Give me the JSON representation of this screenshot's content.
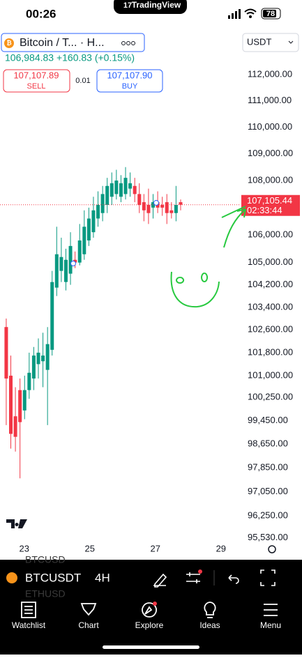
{
  "status_bar": {
    "time": "00:26",
    "app_pill": "TradingView",
    "battery": 78
  },
  "header": {
    "symbol": "Bitcoin / T...  · H...",
    "currency": "USDT",
    "quote": "106,984.83 +160.83 (+0.15%)",
    "sell_price": "107,107.89",
    "sell_label": "SELL",
    "spread": "0.01",
    "buy_price": "107,107.90",
    "buy_label": "BUY"
  },
  "chart_data": {
    "type": "candlestick",
    "log_scale": true,
    "grid": false,
    "x": [
      22.45,
      22.59,
      22.73,
      22.87,
      23.01,
      23.15,
      23.29,
      23.43,
      23.57,
      23.71,
      23.85,
      23.99,
      24.13,
      24.27,
      24.41,
      24.55,
      24.69,
      24.83,
      24.97,
      25.11,
      25.25,
      25.39,
      25.53,
      25.67,
      25.81,
      25.95,
      26.09,
      26.23,
      26.37,
      26.51,
      26.65,
      26.79,
      26.93,
      27.07,
      27.21,
      27.35,
      27.49,
      27.63,
      27.77
    ],
    "open": [
      102700,
      101000,
      99600,
      100500,
      99800,
      100500,
      100900,
      101400,
      101500,
      101200,
      101900,
      104100,
      104700,
      104300,
      104600,
      105100,
      105000,
      105300,
      105800,
      106100,
      106600,
      106800,
      107100,
      107400,
      107500,
      107400,
      107500,
      107700,
      107800,
      107500,
      107200,
      107100,
      107000,
      107200,
      107100,
      107200,
      106900,
      106800,
      107200
    ],
    "high": [
      103000,
      101700,
      100600,
      100900,
      101000,
      101800,
      102000,
      102300,
      102500,
      102700,
      104700,
      106300,
      105900,
      105500,
      106100,
      105400,
      106400,
      106900,
      107000,
      107400,
      107600,
      107800,
      108100,
      108300,
      108400,
      108200,
      108500,
      108300,
      108100,
      107900,
      107500,
      107700,
      107500,
      107600,
      107400,
      107500,
      107200,
      107800,
      107300
    ],
    "low": [
      99300,
      98500,
      98400,
      97500,
      99500,
      100200,
      100500,
      100900,
      100600,
      99300,
      101700,
      103800,
      104300,
      104000,
      104200,
      104800,
      104900,
      105100,
      105600,
      105900,
      106300,
      106500,
      106800,
      107100,
      107300,
      107200,
      107300,
      107400,
      107200,
      106800,
      106500,
      106400,
      106600,
      106800,
      106700,
      106400,
      106600,
      106500,
      106900
    ],
    "close": [
      100900,
      99000,
      98900,
      99400,
      100500,
      101100,
      101700,
      101800,
      101700,
      102100,
      104300,
      105300,
      105200,
      105100,
      105600,
      105000,
      105800,
      106300,
      106600,
      106900,
      107100,
      107500,
      107800,
      107900,
      108000,
      107900,
      108100,
      107900,
      107500,
      107100,
      106900,
      106800,
      107200,
      107000,
      107000,
      106800,
      106800,
      107100,
      107105.44
    ],
    "up_color": "#089981",
    "down_color": "#f23645",
    "xlim": [
      22.26,
      29.6
    ],
    "xticks": [
      23,
      25,
      27,
      29
    ],
    "ylim": [
      95450,
      113270
    ],
    "yticks": [
      {
        "value": 112000,
        "label": "112,000.00"
      },
      {
        "value": 111000,
        "label": "111,000.00"
      },
      {
        "value": 110000,
        "label": "110,000.00"
      },
      {
        "value": 109000,
        "label": "109,000.00"
      },
      {
        "value": 108000,
        "label": "108,000.00"
      },
      {
        "value": 106000,
        "label": "106,000.00"
      },
      {
        "value": 105000,
        "label": "105,000.00"
      },
      {
        "value": 104200,
        "label": "104,200.00"
      },
      {
        "value": 103400,
        "label": "103,400.00"
      },
      {
        "value": 102600,
        "label": "102,600.00"
      },
      {
        "value": 101800,
        "label": "101,800.00"
      },
      {
        "value": 101000,
        "label": "101,000.00"
      },
      {
        "value": 100250,
        "label": "100,250.00"
      },
      {
        "value": 99450,
        "label": "99,450.00"
      },
      {
        "value": 98650,
        "label": "98,650.00"
      },
      {
        "value": 97850,
        "label": "97,850.00"
      },
      {
        "value": 97050,
        "label": "97,050.00"
      },
      {
        "value": 96250,
        "label": "96,250.00"
      },
      {
        "value": 95530,
        "label": "95,530.00"
      }
    ],
    "price_line": {
      "value": 107105.44,
      "label": "107,105.44",
      "countdown": "02:33:44",
      "color": "#f23645"
    }
  },
  "toolbar": {
    "symbol": "BTCUSDT",
    "interval": "4H",
    "ghost_above": "BTCUSD",
    "ghost_below": "ETHUSD"
  },
  "tab_bar": {
    "tabs": [
      "Watchlist",
      "Chart",
      "Explore",
      "Ideas",
      "Menu"
    ]
  }
}
